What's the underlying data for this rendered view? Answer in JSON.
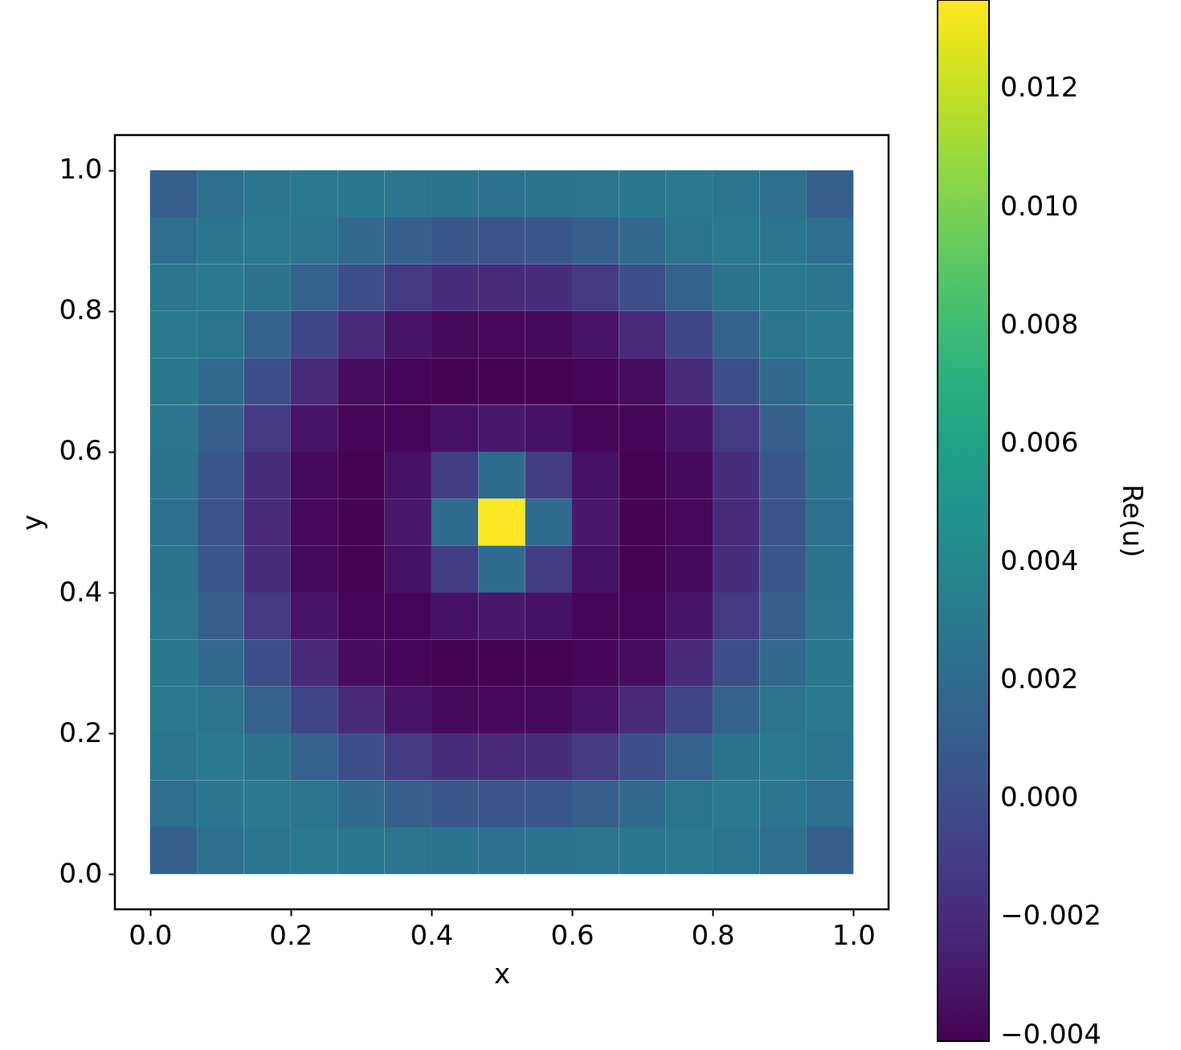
{
  "chart_data": {
    "type": "heatmap",
    "xlabel": "x",
    "ylabel": "y",
    "clabel": "Re(u)",
    "x": [
      0.0333,
      0.1,
      0.1667,
      0.2333,
      0.3,
      0.3667,
      0.4333,
      0.5,
      0.5667,
      0.6333,
      0.7,
      0.7667,
      0.8333,
      0.9,
      0.9667
    ],
    "y": [
      0.9667,
      0.9,
      0.8333,
      0.7667,
      0.7,
      0.6333,
      0.5667,
      0.5,
      0.4333,
      0.3667,
      0.3,
      0.2333,
      0.1667,
      0.1,
      0.0333
    ],
    "cells": [
      [
        0.0012,
        0.0022,
        0.0027,
        0.003,
        0.0029,
        0.0027,
        0.0026,
        0.0025,
        0.0026,
        0.0027,
        0.0029,
        0.003,
        0.0027,
        0.0022,
        0.0012
      ],
      [
        0.0022,
        0.0028,
        0.003,
        0.0027,
        0.0019,
        0.0012,
        0.0007,
        0.0005,
        0.0007,
        0.0012,
        0.0019,
        0.0027,
        0.003,
        0.0028,
        0.0022
      ],
      [
        0.0027,
        0.003,
        0.0026,
        0.0013,
        0.0001,
        -0.0012,
        -0.0018,
        -0.002,
        -0.0018,
        -0.0012,
        0.0001,
        0.0013,
        0.0026,
        0.003,
        0.0027
      ],
      [
        0.003,
        0.0027,
        0.0013,
        -0.0005,
        -0.002,
        -0.0032,
        -0.0037,
        -0.0038,
        -0.0037,
        -0.0032,
        -0.002,
        -0.0005,
        0.0013,
        0.0027,
        0.003
      ],
      [
        0.0029,
        0.0019,
        0.0001,
        -0.002,
        -0.0036,
        -0.0039,
        -0.004,
        -0.004,
        -0.004,
        -0.0039,
        -0.0036,
        -0.002,
        0.0001,
        0.0019,
        0.0029
      ],
      [
        0.0027,
        0.0012,
        -0.0012,
        -0.0032,
        -0.0039,
        -0.0039,
        -0.0033,
        -0.003,
        -0.0033,
        -0.0039,
        -0.0039,
        -0.0032,
        -0.0012,
        0.0012,
        0.0027
      ],
      [
        0.0026,
        0.0007,
        -0.0018,
        -0.0037,
        -0.004,
        -0.0033,
        -0.001,
        0.002,
        -0.001,
        -0.0033,
        -0.004,
        -0.0037,
        -0.0018,
        0.0007,
        0.0026
      ],
      [
        0.0025,
        0.0005,
        -0.002,
        -0.0038,
        -0.004,
        -0.003,
        0.002,
        0.0135,
        0.002,
        -0.003,
        -0.004,
        -0.0038,
        -0.002,
        0.0005,
        0.0025
      ],
      [
        0.0026,
        0.0007,
        -0.0018,
        -0.0037,
        -0.004,
        -0.0033,
        -0.001,
        0.002,
        -0.001,
        -0.0033,
        -0.004,
        -0.0037,
        -0.0018,
        0.0007,
        0.0026
      ],
      [
        0.0027,
        0.0012,
        -0.0012,
        -0.0032,
        -0.0039,
        -0.0039,
        -0.0033,
        -0.003,
        -0.0033,
        -0.0039,
        -0.0039,
        -0.0032,
        -0.0012,
        0.0012,
        0.0027
      ],
      [
        0.0029,
        0.0019,
        0.0001,
        -0.002,
        -0.0036,
        -0.0039,
        -0.004,
        -0.004,
        -0.004,
        -0.0039,
        -0.0036,
        -0.002,
        0.0001,
        0.0019,
        0.0029
      ],
      [
        0.003,
        0.0027,
        0.0013,
        -0.0005,
        -0.002,
        -0.0032,
        -0.0037,
        -0.0038,
        -0.0037,
        -0.0032,
        -0.002,
        -0.0005,
        0.0013,
        0.0027,
        0.003
      ],
      [
        0.0027,
        0.003,
        0.0026,
        0.0013,
        0.0001,
        -0.0012,
        -0.0018,
        -0.002,
        -0.0018,
        -0.0012,
        0.0001,
        0.0013,
        0.0026,
        0.003,
        0.0027
      ],
      [
        0.0022,
        0.0028,
        0.003,
        0.0027,
        0.0019,
        0.0012,
        0.0007,
        0.0005,
        0.0007,
        0.0012,
        0.0019,
        0.0027,
        0.003,
        0.0028,
        0.0022
      ],
      [
        0.0012,
        0.0022,
        0.0027,
        0.003,
        0.0029,
        0.0027,
        0.0026,
        0.0025,
        0.0026,
        0.0027,
        0.0029,
        0.003,
        0.0027,
        0.0022,
        0.0012
      ]
    ],
    "xlim": [
      -0.05,
      1.05
    ],
    "ylim": [
      -0.05,
      1.05
    ],
    "xticks": [
      {
        "value": 0,
        "label": "0.0"
      },
      0.2,
      0.4,
      0.6,
      0.8,
      {
        "value": 1,
        "label": "1.0"
      }
    ],
    "yticks": [
      {
        "value": 0,
        "label": "0.0"
      },
      0.2,
      0.4,
      0.6,
      0.8,
      {
        "value": 1,
        "label": "1.0"
      }
    ],
    "clim": [
      -0.0041,
      0.0135
    ],
    "cticks": [
      {
        "value": -0.004,
        "label": "−0.004"
      },
      {
        "value": -0.002,
        "label": "−0.002"
      },
      {
        "value": 0,
        "label": "0.000"
      },
      0.002,
      0.004,
      0.006,
      0.008,
      {
        "value": 0.01,
        "label": "0.010"
      },
      0.012
    ],
    "grid": false
  }
}
